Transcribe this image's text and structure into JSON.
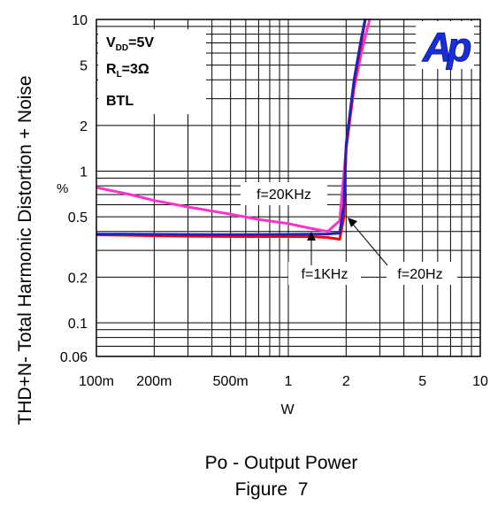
{
  "chart_data": {
    "type": "line",
    "x_scale": "log",
    "y_scale": "log",
    "xlim": [
      0.1,
      10
    ],
    "ylim": [
      0.06,
      10
    ],
    "ylabel": "THD+N- Total Harmonic Distortion + Noise",
    "ylabel_unit": "%",
    "xlabel_unit": "W",
    "xlabel": "Po - Output Power",
    "caption": "Figure  7",
    "x_tick_labels": [
      "100m",
      "200m",
      "500m",
      "1",
      "2",
      "5",
      "10"
    ],
    "x_tick_values": [
      0.1,
      0.2,
      0.5,
      1,
      2,
      5,
      10
    ],
    "y_tick_labels": [
      "10",
      "5",
      "2",
      "1",
      "0.5",
      "0.2",
      "0.1",
      "0.06"
    ],
    "y_tick_values": [
      10,
      5,
      2,
      1,
      0.5,
      0.2,
      0.1,
      0.06
    ],
    "conditions": {
      "vdd_main": "V",
      "vdd_sub": "DD",
      "vdd_value": "=5V",
      "rl_main": "R",
      "rl_sub": "L",
      "rl_value": "=3Ω",
      "mode": "BTL"
    },
    "logo": "Ap",
    "grid": true,
    "series": [
      {
        "color": "#ff33cc",
        "x": [
          0.1,
          0.15,
          0.2,
          0.3,
          0.5,
          0.7,
          1.0,
          1.3,
          1.6,
          1.85,
          2.0,
          2.2,
          2.4,
          2.6,
          2.75
        ],
        "y": [
          0.78,
          0.7,
          0.64,
          0.58,
          0.52,
          0.48,
          0.45,
          0.42,
          0.4,
          0.47,
          1.4,
          3.5,
          6.0,
          9.0,
          12.0
        ]
      },
      {
        "color": "#ff0000",
        "x": [
          0.1,
          0.3,
          0.6,
          1.0,
          1.3,
          1.6,
          1.85,
          1.95,
          2.0,
          2.2,
          2.4,
          2.55
        ],
        "y": [
          0.38,
          0.372,
          0.37,
          0.37,
          0.37,
          0.365,
          0.355,
          0.5,
          1.4,
          3.8,
          7.0,
          11.0
        ]
      },
      {
        "color": "#2222bb",
        "x": [
          0.1,
          0.3,
          0.6,
          1.0,
          1.3,
          1.6,
          1.85,
          1.95,
          2.0,
          2.2,
          2.4,
          2.55
        ],
        "y": [
          0.385,
          0.382,
          0.381,
          0.383,
          0.384,
          0.385,
          0.39,
          0.6,
          1.5,
          4.0,
          7.5,
          11.0
        ]
      }
    ],
    "annotations": [
      {
        "text": "f=20KHz"
      },
      {
        "text": "f=1KHz"
      },
      {
        "text": "f=20Hz"
      }
    ]
  }
}
